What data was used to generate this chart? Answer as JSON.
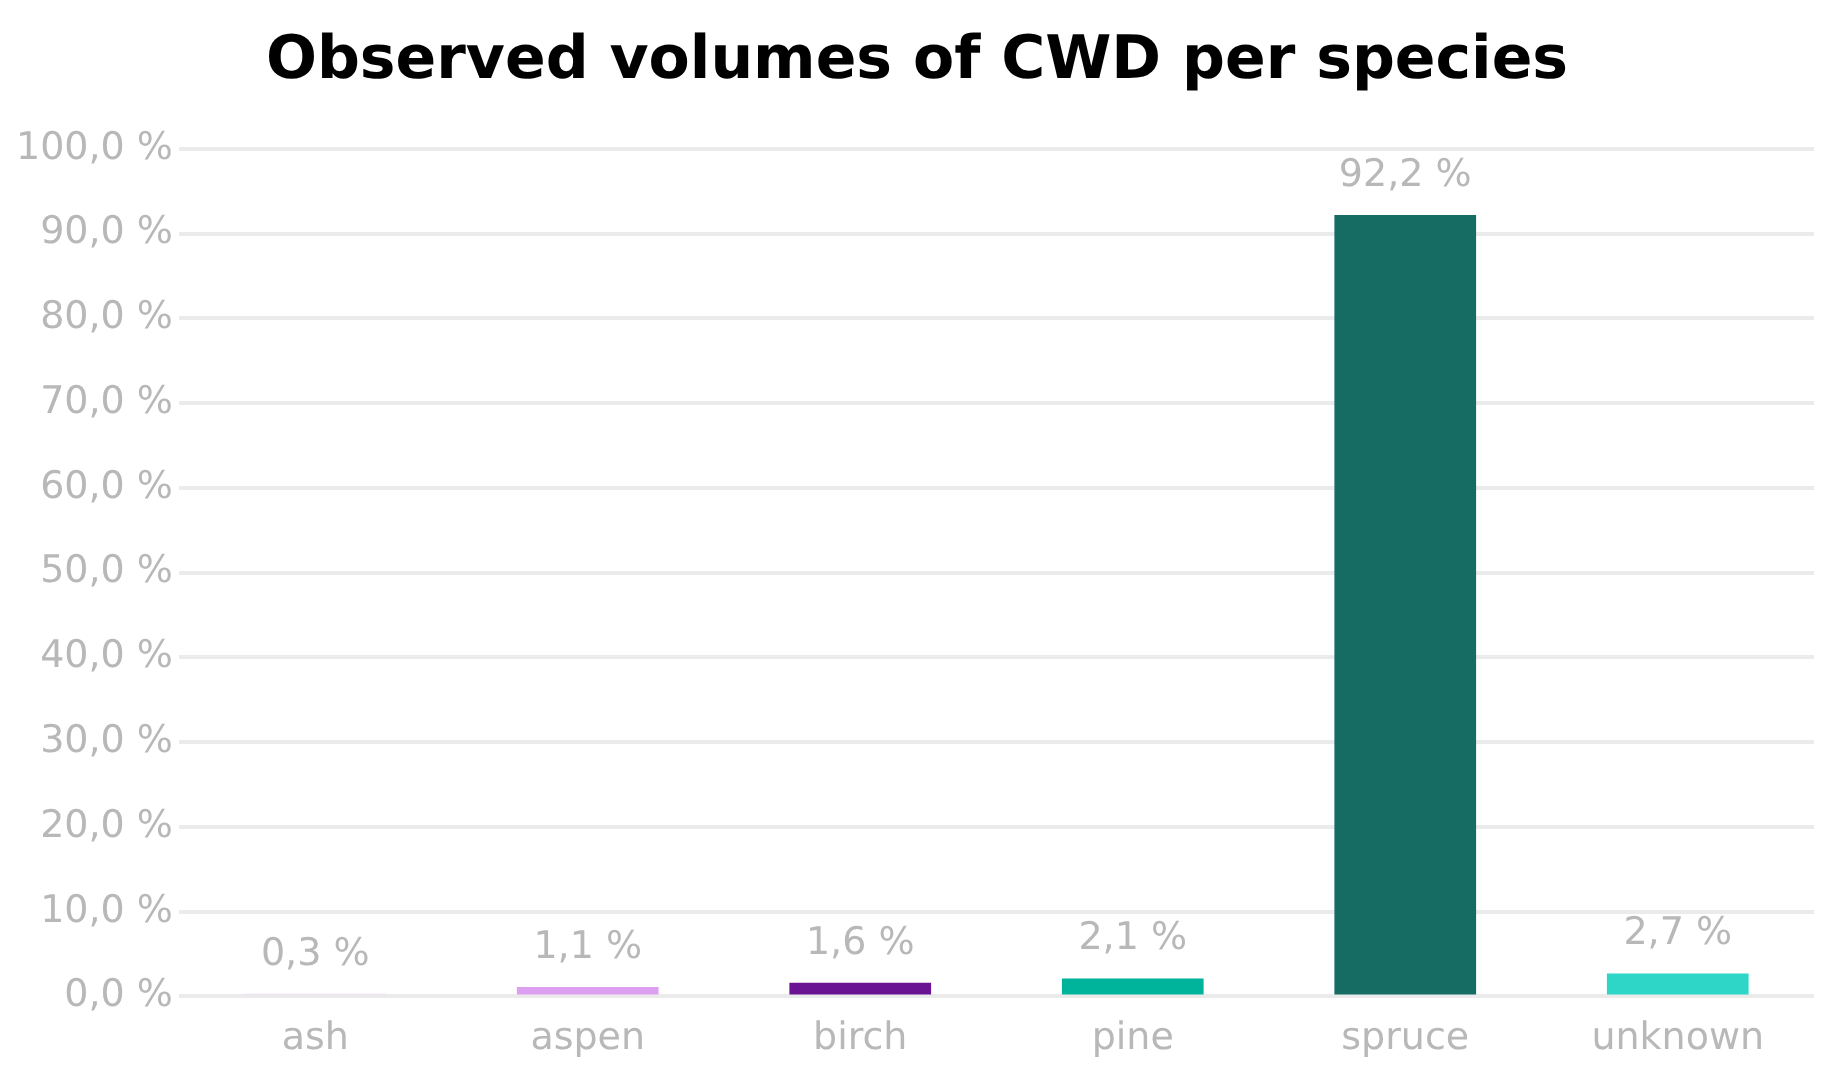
{
  "chart_data": {
    "type": "bar",
    "title": "Observed volumes of CWD per species",
    "categories": [
      "ash",
      "aspen",
      "birch",
      "pine",
      "spruce",
      "unknown"
    ],
    "values": [
      0.3,
      1.1,
      1.6,
      2.1,
      92.2,
      2.7
    ],
    "colors": [
      "#f0dcf5",
      "#dda0f0",
      "#6a1494",
      "#00b39b",
      "#166b62",
      "#2dd6c6"
    ],
    "value_labels": [
      "0,3 %",
      "1,1 %",
      "1,6 %",
      "2,1 %",
      "92,2 %",
      "2,7 %"
    ],
    "ylim": [
      0,
      100
    ],
    "yticks": [
      {
        "value": 0,
        "label": "0,0 %"
      },
      {
        "value": 10,
        "label": "10,0 %"
      },
      {
        "value": 20,
        "label": "20,0 %"
      },
      {
        "value": 30,
        "label": "30,0 %"
      },
      {
        "value": 40,
        "label": "40,0 %"
      },
      {
        "value": 50,
        "label": "50,0 %"
      },
      {
        "value": 60,
        "label": "60,0 %"
      },
      {
        "value": 70,
        "label": "70,0 %"
      },
      {
        "value": 80,
        "label": "80,0 %"
      },
      {
        "value": 90,
        "label": "90,0 %"
      },
      {
        "value": 100,
        "label": "100,0 %"
      }
    ],
    "grid": "y"
  }
}
